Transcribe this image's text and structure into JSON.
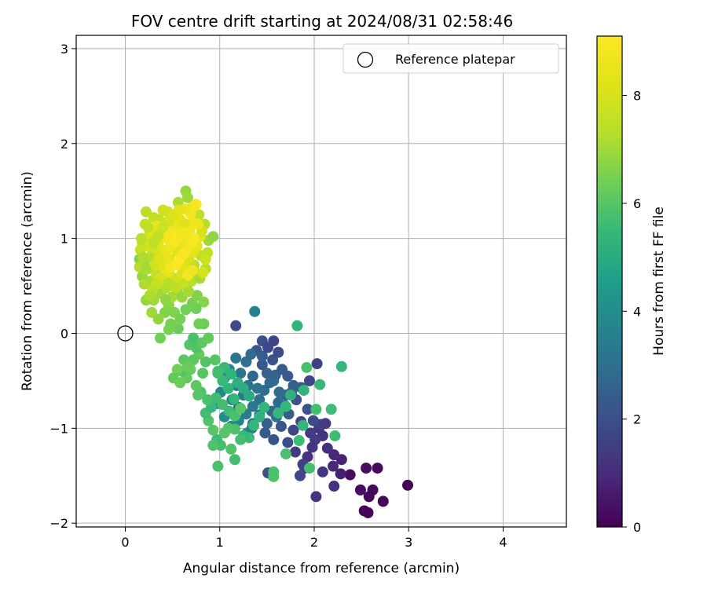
{
  "chart_data": {
    "type": "scatter",
    "title": "FOV centre drift starting at 2024/08/31 02:58:46",
    "xlabel": "Angular distance from reference (arcmin)",
    "ylabel": "Rotation from reference (arcmin)",
    "xlim": [
      -0.52,
      4.67
    ],
    "ylim": [
      -2.04,
      3.14
    ],
    "xticks": [
      0,
      1,
      2,
      3,
      4
    ],
    "yticks": [
      -2,
      -1,
      0,
      1,
      2,
      3
    ],
    "grid": true,
    "legend": {
      "placement": "top-right",
      "entries": [
        "Reference platepar"
      ]
    },
    "colorbar": {
      "label": "Hours from first FF file",
      "min": 0,
      "max": 9.1,
      "ticks": [
        0,
        2,
        4,
        6,
        8
      ],
      "colormap": "viridis"
    },
    "reference_point": {
      "x": 0.0,
      "y": 0.0,
      "label": "Reference platepar"
    },
    "points": [
      [
        2.99,
        -1.6,
        0.1
      ],
      [
        2.73,
        -1.77,
        0.1
      ],
      [
        2.62,
        -1.65,
        0.2
      ],
      [
        2.58,
        -1.72,
        0.1
      ],
      [
        2.53,
        -1.87,
        0.1
      ],
      [
        2.57,
        -1.89,
        0.1
      ],
      [
        2.49,
        -1.65,
        0.3
      ],
      [
        2.55,
        -1.42,
        0.3
      ],
      [
        2.67,
        -1.42,
        0.2
      ],
      [
        2.38,
        -1.49,
        0.3
      ],
      [
        2.28,
        -1.48,
        0.7
      ],
      [
        2.29,
        -1.33,
        0.8
      ],
      [
        2.21,
        -1.28,
        1.0
      ],
      [
        2.21,
        -1.61,
        1.2
      ],
      [
        2.09,
        -1.46,
        1.3
      ],
      [
        2.02,
        -1.72,
        1.2
      ],
      [
        2.2,
        -1.4,
        1.0
      ],
      [
        2.14,
        -1.21,
        1.1
      ],
      [
        2.09,
        -1.08,
        1.2
      ],
      [
        2.05,
        -1.0,
        1.3
      ],
      [
        2.01,
        -1.12,
        1.4
      ],
      [
        1.96,
        -1.05,
        1.5
      ],
      [
        2.07,
        -0.96,
        1.6
      ],
      [
        2.12,
        -0.95,
        1.4
      ],
      [
        1.98,
        -1.2,
        1.3
      ],
      [
        1.93,
        -1.3,
        1.2
      ],
      [
        1.9,
        -1.42,
        1.5
      ],
      [
        1.85,
        -1.5,
        1.8
      ],
      [
        1.88,
        -1.38,
        1.6
      ],
      [
        1.8,
        -1.25,
        1.4
      ],
      [
        2.03,
        -0.32,
        1.6
      ],
      [
        1.95,
        -0.5,
        1.7
      ],
      [
        1.99,
        -0.92,
        1.9
      ],
      [
        1.93,
        -0.8,
        2.1
      ],
      [
        1.86,
        -0.93,
        1.7
      ],
      [
        1.78,
        -1.02,
        1.8
      ],
      [
        1.72,
        -1.15,
        2.0
      ],
      [
        1.65,
        -0.98,
        2.2
      ],
      [
        1.73,
        -0.85,
        2.4
      ],
      [
        1.81,
        -0.7,
        2.1
      ],
      [
        1.86,
        -0.57,
        2.3
      ],
      [
        1.78,
        -0.55,
        2.5
      ],
      [
        1.7,
        -0.65,
        2.6
      ],
      [
        1.62,
        -0.73,
        2.8
      ],
      [
        1.55,
        -0.82,
        2.7
      ],
      [
        1.5,
        -0.95,
        2.5
      ],
      [
        1.48,
        -1.05,
        2.3
      ],
      [
        1.56,
        -1.5,
        1.9
      ],
      [
        1.51,
        -1.47,
        2.0
      ],
      [
        1.57,
        -1.12,
        2.1
      ],
      [
        1.63,
        -0.62,
        2.9
      ],
      [
        1.57,
        -0.5,
        3.0
      ],
      [
        1.5,
        -0.42,
        2.6
      ],
      [
        1.45,
        -0.33,
        2.3
      ],
      [
        1.39,
        -0.18,
        2.2
      ],
      [
        1.45,
        -0.08,
        2.0
      ],
      [
        1.51,
        -0.15,
        1.8
      ],
      [
        1.57,
        -0.08,
        1.7
      ],
      [
        1.17,
        0.08,
        1.9
      ],
      [
        1.35,
        -0.45,
        2.7
      ],
      [
        1.3,
        -0.55,
        3.0
      ],
      [
        1.25,
        -0.65,
        3.2
      ],
      [
        1.2,
        -0.78,
        3.4
      ],
      [
        1.13,
        -0.7,
        3.5
      ],
      [
        1.18,
        -0.55,
        3.3
      ],
      [
        1.22,
        -0.42,
        3.1
      ],
      [
        1.28,
        -0.3,
        3.0
      ],
      [
        1.33,
        -0.22,
        2.8
      ],
      [
        1.17,
        -0.26,
        3.2
      ],
      [
        1.1,
        -0.38,
        3.6
      ],
      [
        1.05,
        -0.47,
        3.8
      ],
      [
        1.01,
        -0.62,
        3.7
      ],
      [
        0.98,
        -0.74,
        3.9
      ],
      [
        1.05,
        -0.88,
        4.0
      ],
      [
        1.12,
        -0.98,
        3.8
      ],
      [
        1.2,
        -0.92,
        3.7
      ],
      [
        1.28,
        -0.85,
        3.5
      ],
      [
        1.35,
        -0.77,
        3.3
      ],
      [
        1.42,
        -0.7,
        3.0
      ],
      [
        1.47,
        -0.6,
        2.9
      ],
      [
        1.53,
        -0.52,
        2.8
      ],
      [
        1.59,
        -0.44,
        2.6
      ],
      [
        1.66,
        -0.38,
        2.4
      ],
      [
        1.72,
        -0.45,
        2.3
      ],
      [
        1.76,
        -0.62,
        2.5
      ],
      [
        1.69,
        -0.76,
        2.8
      ],
      [
        1.6,
        -0.88,
        3.0
      ],
      [
        1.4,
        -0.58,
        3.1
      ],
      [
        1.35,
        -0.95,
        3.6
      ],
      [
        1.29,
        -1.05,
        3.9
      ],
      [
        1.34,
        -1.0,
        3.4
      ],
      [
        1.42,
        -0.86,
        3.2
      ],
      [
        1.45,
        -0.24,
        2.4
      ],
      [
        1.56,
        -0.28,
        2.1
      ],
      [
        1.62,
        -0.2,
        1.9
      ],
      [
        1.37,
        0.23,
        3.6
      ],
      [
        1.82,
        0.08,
        5.3
      ],
      [
        2.29,
        -0.35,
        5.4
      ],
      [
        2.06,
        -0.54,
        5.5
      ],
      [
        2.18,
        -0.8,
        5.6
      ],
      [
        2.22,
        -1.08,
        5.6
      ],
      [
        2.02,
        -0.8,
        5.7
      ],
      [
        1.92,
        -0.36,
        5.8
      ],
      [
        1.89,
        -0.6,
        5.3
      ],
      [
        1.75,
        -0.65,
        5.2
      ],
      [
        1.7,
        -0.77,
        5.4
      ],
      [
        1.62,
        -0.84,
        5.5
      ],
      [
        1.88,
        -0.97,
        5.4
      ],
      [
        1.84,
        -1.13,
        5.6
      ],
      [
        1.95,
        -1.42,
        5.7
      ],
      [
        1.7,
        -1.27,
        5.8
      ],
      [
        1.57,
        -1.51,
        5.9
      ],
      [
        1.57,
        -1.46,
        5.8
      ],
      [
        1.47,
        -0.78,
        5.4
      ],
      [
        1.42,
        -0.88,
        5.2
      ],
      [
        1.36,
        -0.97,
        5.4
      ],
      [
        1.31,
        -1.1,
        5.6
      ],
      [
        1.25,
        -1.08,
        5.5
      ],
      [
        1.22,
        -1.12,
        5.7
      ],
      [
        1.16,
        -1.01,
        5.8
      ],
      [
        1.09,
        -1.0,
        5.9
      ],
      [
        1.01,
        -1.18,
        5.7
      ],
      [
        0.97,
        -1.12,
        5.6
      ],
      [
        0.93,
        -1.02,
        6.0
      ],
      [
        0.88,
        -0.92,
        5.9
      ],
      [
        0.85,
        -0.84,
        5.7
      ],
      [
        0.91,
        -0.78,
        5.5
      ],
      [
        0.96,
        -0.68,
        5.6
      ],
      [
        1.03,
        -0.75,
        5.7
      ],
      [
        1.1,
        -0.82,
        5.6
      ],
      [
        1.16,
        -0.87,
        5.8
      ],
      [
        1.22,
        -0.79,
        6.0
      ],
      [
        1.15,
        -0.69,
        5.4
      ],
      [
        1.09,
        -0.58,
        5.3
      ],
      [
        1.03,
        -0.5,
        5.5
      ],
      [
        0.98,
        -0.42,
        5.6
      ],
      [
        1.05,
        -0.36,
        5.5
      ],
      [
        1.12,
        -0.43,
        5.3
      ],
      [
        1.19,
        -0.52,
        5.2
      ],
      [
        1.25,
        -0.58,
        5.1
      ],
      [
        1.31,
        -0.66,
        5.0
      ],
      [
        1.16,
        -1.33,
        5.7
      ],
      [
        1.12,
        -1.22,
        5.9
      ],
      [
        1.05,
        -1.05,
        6.0
      ],
      [
        0.98,
        -1.4,
        5.8
      ],
      [
        0.93,
        -1.18,
        5.9
      ],
      [
        0.87,
        -0.7,
        5.8
      ],
      [
        0.8,
        -0.62,
        5.9
      ],
      [
        0.77,
        -0.65,
        6.0
      ],
      [
        0.75,
        -0.55,
        6.1
      ],
      [
        0.82,
        -0.42,
        6.0
      ],
      [
        0.85,
        -0.3,
        5.9
      ],
      [
        0.78,
        -0.22,
        6.2
      ],
      [
        0.72,
        -0.28,
        6.1
      ],
      [
        0.69,
        -0.38,
        6.3
      ],
      [
        0.65,
        -0.47,
        6.2
      ],
      [
        0.6,
        -0.4,
        6.0
      ],
      [
        0.62,
        -0.28,
        6.1
      ],
      [
        0.68,
        -0.12,
        6.0
      ],
      [
        0.72,
        -0.05,
        5.8
      ],
      [
        0.75,
        -0.15,
        5.9
      ],
      [
        0.66,
        -0.35,
        6.3
      ],
      [
        0.55,
        -0.38,
        6.4
      ],
      [
        0.51,
        -0.47,
        6.2
      ],
      [
        0.58,
        -0.52,
        6.3
      ],
      [
        0.95,
        -0.28,
        6.0
      ],
      [
        0.98,
        -0.4,
        5.7
      ],
      [
        0.81,
        -0.1,
        6.1
      ],
      [
        0.83,
        0.1,
        6.3
      ],
      [
        0.78,
        0.1,
        6.4
      ],
      [
        0.88,
        -0.05,
        6.2
      ],
      [
        0.56,
        0.05,
        6.3
      ],
      [
        0.46,
        0.04,
        6.5
      ],
      [
        0.48,
        0.1,
        6.5
      ],
      [
        0.37,
        -0.05,
        6.4
      ],
      [
        0.42,
        0.22,
        6.6
      ],
      [
        0.46,
        0.3,
        6.7
      ],
      [
        0.52,
        0.22,
        6.6
      ],
      [
        0.58,
        0.15,
        6.5
      ],
      [
        0.64,
        0.25,
        6.4
      ],
      [
        0.71,
        0.32,
        6.5
      ],
      [
        0.76,
        0.4,
        6.6
      ],
      [
        0.83,
        0.33,
        6.7
      ],
      [
        0.75,
        0.26,
        6.4
      ],
      [
        0.35,
        0.15,
        6.8
      ],
      [
        0.3,
        0.35,
        7.0
      ],
      [
        0.27,
        0.55,
        7.1
      ],
      [
        0.22,
        0.78,
        6.8
      ],
      [
        0.18,
        0.6,
        6.9
      ],
      [
        0.15,
        0.78,
        6.7
      ],
      [
        0.22,
        0.35,
        6.9
      ],
      [
        0.28,
        0.22,
        7.0
      ],
      [
        0.32,
        0.45,
        7.1
      ],
      [
        0.38,
        0.42,
        7.0
      ],
      [
        0.43,
        0.48,
        7.2
      ],
      [
        0.49,
        0.38,
        7.1
      ],
      [
        0.55,
        0.45,
        7.0
      ],
      [
        0.6,
        0.38,
        6.9
      ],
      [
        0.65,
        0.5,
        7.2
      ],
      [
        0.7,
        0.55,
        7.3
      ],
      [
        0.75,
        0.63,
        7.2
      ],
      [
        0.79,
        0.58,
        7.1
      ],
      [
        0.68,
        0.66,
        7.4
      ],
      [
        0.73,
        0.72,
        7.5
      ],
      [
        0.85,
        0.68,
        7.3
      ],
      [
        0.8,
        0.82,
        7.4
      ],
      [
        0.88,
        0.98,
        7.0
      ],
      [
        0.93,
        1.02,
        6.8
      ],
      [
        0.84,
        1.15,
        7.3
      ],
      [
        0.78,
        1.25,
        7.5
      ],
      [
        0.7,
        1.32,
        7.6
      ],
      [
        0.64,
        1.5,
        6.9
      ],
      [
        0.66,
        1.43,
        7.0
      ],
      [
        0.56,
        1.38,
        7.2
      ],
      [
        0.5,
        1.2,
        7.6
      ],
      [
        0.45,
        1.28,
        7.8
      ],
      [
        0.4,
        1.3,
        7.9
      ],
      [
        0.36,
        1.2,
        7.7
      ],
      [
        0.3,
        1.22,
        7.6
      ],
      [
        0.22,
        1.28,
        7.4
      ],
      [
        0.21,
        1.15,
        7.6
      ],
      [
        0.26,
        1.05,
        7.8
      ],
      [
        0.18,
        0.95,
        7.5
      ],
      [
        0.16,
        0.88,
        7.7
      ],
      [
        0.15,
        0.7,
        7.3
      ],
      [
        0.2,
        0.52,
        7.2
      ],
      [
        0.24,
        0.68,
        7.4
      ],
      [
        0.33,
        0.62,
        7.6
      ],
      [
        0.4,
        0.57,
        7.8
      ],
      [
        0.47,
        0.62,
        8.0
      ],
      [
        0.55,
        0.58,
        7.9
      ],
      [
        0.6,
        0.63,
        8.1
      ],
      [
        0.63,
        0.7,
        8.2
      ],
      [
        0.67,
        0.78,
        8.0
      ],
      [
        0.72,
        0.85,
        8.3
      ],
      [
        0.76,
        0.92,
        8.5
      ],
      [
        0.79,
        1.02,
        8.3
      ],
      [
        0.81,
        1.08,
        8.0
      ],
      [
        0.77,
        1.15,
        8.6
      ],
      [
        0.71,
        1.17,
        8.7
      ],
      [
        0.68,
        1.08,
        8.8
      ],
      [
        0.64,
        1.0,
        8.6
      ],
      [
        0.59,
        0.94,
        8.4
      ],
      [
        0.55,
        0.85,
        8.2
      ],
      [
        0.51,
        0.78,
        8.1
      ],
      [
        0.46,
        0.75,
        8.3
      ],
      [
        0.43,
        0.82,
        8.5
      ],
      [
        0.39,
        0.88,
        8.4
      ],
      [
        0.35,
        0.95,
        8.2
      ],
      [
        0.31,
        0.85,
        8.0
      ],
      [
        0.27,
        0.9,
        7.9
      ],
      [
        0.25,
        0.98,
        8.1
      ],
      [
        0.29,
        1.08,
        8.3
      ],
      [
        0.34,
        1.13,
        8.5
      ],
      [
        0.39,
        1.05,
        8.7
      ],
      [
        0.44,
        1.0,
        8.8
      ],
      [
        0.49,
        1.07,
        8.9
      ],
      [
        0.53,
        1.14,
        8.6
      ],
      [
        0.58,
        1.2,
        8.4
      ],
      [
        0.62,
        1.16,
        8.2
      ],
      [
        0.47,
        0.9,
        8.6
      ],
      [
        0.51,
        0.96,
        8.9
      ],
      [
        0.56,
        1.01,
        9.0
      ],
      [
        0.6,
        1.06,
        8.8
      ],
      [
        0.65,
        0.88,
        8.7
      ],
      [
        0.69,
        0.95,
        8.9
      ],
      [
        0.73,
        1.0,
        9.0
      ],
      [
        0.75,
        1.36,
        9.1
      ],
      [
        0.72,
        1.33,
        8.9
      ],
      [
        0.69,
        1.26,
        8.8
      ],
      [
        0.63,
        1.31,
        8.5
      ],
      [
        0.57,
        1.3,
        8.3
      ],
      [
        0.51,
        1.25,
        8.1
      ],
      [
        0.46,
        1.18,
        8.0
      ],
      [
        0.4,
        1.12,
        7.8
      ],
      [
        0.35,
        1.03,
        7.6
      ],
      [
        0.3,
        0.96,
        7.5
      ],
      [
        0.26,
        0.8,
        7.3
      ],
      [
        0.22,
        0.68,
        7.1
      ],
      [
        0.19,
        0.8,
        7.2
      ],
      [
        0.17,
        1.0,
        7.4
      ],
      [
        0.24,
        1.12,
        7.5
      ],
      [
        0.32,
        0.72,
        7.9
      ],
      [
        0.36,
        0.78,
        8.1
      ],
      [
        0.41,
        0.7,
        8.3
      ],
      [
        0.45,
        0.64,
        8.5
      ],
      [
        0.48,
        0.7,
        8.8
      ],
      [
        0.54,
        0.72,
        9.0
      ],
      [
        0.57,
        0.78,
        9.1
      ],
      [
        0.62,
        0.84,
        9.0
      ],
      [
        0.66,
        0.61,
        8.9
      ],
      [
        0.71,
        0.66,
        8.7
      ],
      [
        0.82,
        0.64,
        8.0
      ],
      [
        0.87,
        0.85,
        7.6
      ],
      [
        0.85,
        0.78,
        7.8
      ],
      [
        0.38,
        0.58,
        8.0
      ],
      [
        0.33,
        0.52,
        7.7
      ],
      [
        0.29,
        0.46,
        7.5
      ],
      [
        0.26,
        0.4,
        7.2
      ],
      [
        0.43,
        0.35,
        6.8
      ],
      [
        0.46,
        0.53,
        7.3
      ],
      [
        0.53,
        0.48,
        7.5
      ],
      [
        0.61,
        0.52,
        7.7
      ],
      [
        0.67,
        0.44,
        7.1
      ]
    ]
  }
}
